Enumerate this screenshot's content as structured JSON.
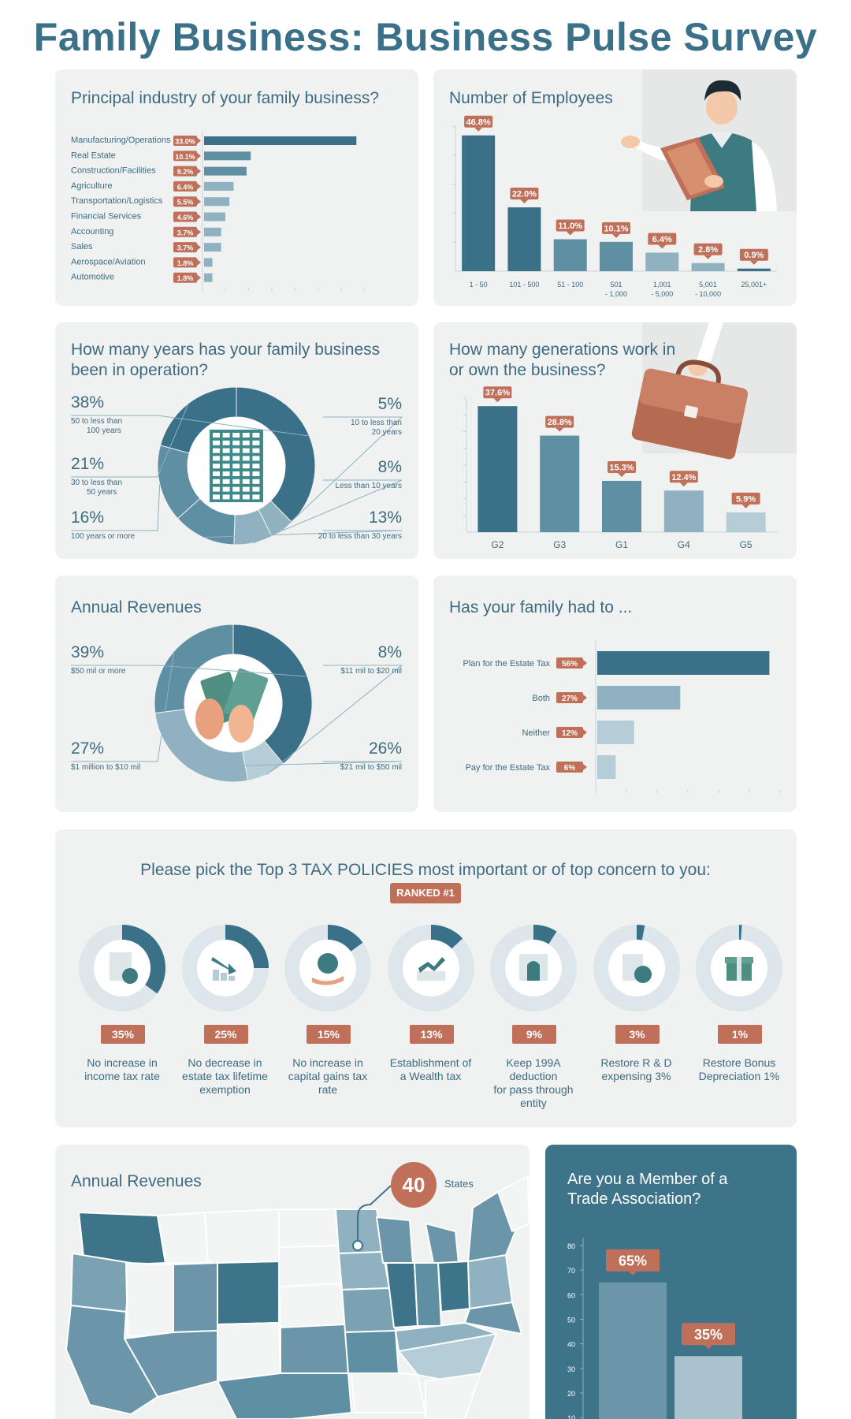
{
  "title": "Family Business: Business Pulse Survey",
  "colors": {
    "dark": "#3a7189",
    "mid": "#5e8fa3",
    "light": "#8fb1c0",
    "pale": "#b5cdd7",
    "accent": "#c07059",
    "card": "#f0f1f1"
  },
  "industry": {
    "title": "Principal industry of your family business?",
    "chart_data": {
      "type": "bar",
      "orientation": "horizontal",
      "categories": [
        "Manufacturing/Operations",
        "Real Estate",
        "Construction/Facilities",
        "Agriculture",
        "Transportation/Logistics",
        "Financial Services",
        "Accounting",
        "Sales",
        "Aerospace/Aviation",
        "Automotive"
      ],
      "values": [
        33.0,
        10.1,
        9.2,
        6.4,
        5.5,
        4.6,
        3.7,
        3.7,
        1.8,
        1.8
      ],
      "labels": [
        "33.0%",
        "10.1%",
        "9.2%",
        "6.4%",
        "5.5%",
        "4.6%",
        "3.7%",
        "3.7%",
        "1.8%",
        "1.8%"
      ],
      "xlim": [
        0,
        35
      ]
    }
  },
  "employees": {
    "title": "Number of Employees",
    "chart_data": {
      "type": "bar",
      "categories": [
        [
          "1 - 50"
        ],
        [
          "101 - 500"
        ],
        [
          "51 - 100"
        ],
        [
          "501",
          "- 1,000"
        ],
        [
          "1,001",
          "- 5,000"
        ],
        [
          "5,001",
          "- 10,000"
        ],
        [
          "25,001+"
        ]
      ],
      "values": [
        46.8,
        22.0,
        11.0,
        10.1,
        6.4,
        2.8,
        0.9
      ],
      "labels": [
        "46.8%",
        "22.0%",
        "11.0%",
        "10.1%",
        "6.4%",
        "2.8%",
        "0.9%"
      ],
      "ylim": [
        0,
        50
      ]
    }
  },
  "years": {
    "title": [
      "How many years has your family business",
      "been in operation?"
    ],
    "chart_data": {
      "type": "pie",
      "donut": true,
      "slices": [
        {
          "pct": "38%",
          "value": 38,
          "label": [
            "50 to less than",
            "100 years"
          ]
        },
        {
          "pct": "5%",
          "value": 5,
          "label": [
            "10 to less than",
            "20 years"
          ]
        },
        {
          "pct": "8%",
          "value": 8,
          "label": [
            "Less than 10 years"
          ]
        },
        {
          "pct": "13%",
          "value": 13,
          "label": [
            "20 to less than 30 years"
          ]
        },
        {
          "pct": "16%",
          "value": 16,
          "label": [
            "100 years or more"
          ]
        },
        {
          "pct": "21%",
          "value": 21,
          "label": [
            "30 to less than",
            "50 years"
          ]
        }
      ]
    }
  },
  "generations": {
    "title": [
      "How many generations work in",
      "or own the business?"
    ],
    "chart_data": {
      "type": "bar",
      "categories": [
        "G2",
        "G3",
        "G1",
        "G4",
        "G5"
      ],
      "values": [
        37.6,
        28.8,
        15.3,
        12.4,
        5.9
      ],
      "labels": [
        "37.6%",
        "28.8%",
        "15.3%",
        "12.4%",
        "5.9%"
      ],
      "ylim": [
        0,
        40
      ]
    }
  },
  "revenues": {
    "title": "Annual Revenues",
    "chart_data": {
      "type": "pie",
      "donut": true,
      "slices": [
        {
          "pct": "39%",
          "value": 39,
          "label": [
            "$50 mil or more"
          ]
        },
        {
          "pct": "8%",
          "value": 8,
          "label": [
            "$11 mil to $20 mil"
          ]
        },
        {
          "pct": "26%",
          "value": 26,
          "label": [
            "$21 mil to $50 mil"
          ]
        },
        {
          "pct": "27%",
          "value": 27,
          "label": [
            "$1 million to $10 mil"
          ]
        }
      ]
    }
  },
  "estate": {
    "title": "Has your family had to ...",
    "chart_data": {
      "type": "bar",
      "orientation": "horizontal",
      "categories": [
        "Plan for the Estate Tax",
        "Both",
        "Neither",
        "Pay for the Estate Tax"
      ],
      "values": [
        56,
        27,
        12,
        6
      ],
      "labels": [
        "56%",
        "27%",
        "12%",
        "6%"
      ],
      "xlim": [
        0,
        60
      ]
    }
  },
  "tax": {
    "heading": "Please pick the Top 3 TAX POLICIES most important or of top concern to you:",
    "badge": "RANKED #1",
    "chart_data": {
      "type": "pie",
      "items": [
        {
          "value": 35,
          "pct": "35%",
          "label": [
            "No increase in",
            "income tax rate"
          ],
          "icon": "tax-document-icon"
        },
        {
          "value": 25,
          "pct": "25%",
          "label": [
            "No decrease in",
            "estate tax lifetime",
            "exemption"
          ],
          "icon": "declining-chart-icon"
        },
        {
          "value": 15,
          "pct": "15%",
          "label": [
            "No increase in",
            "capital gains tax",
            "rate"
          ],
          "icon": "money-bag-icon"
        },
        {
          "value": 13,
          "pct": "13%",
          "label": [
            "Establishment of",
            "a Wealth tax"
          ],
          "icon": "growth-chart-icon"
        },
        {
          "value": 9,
          "pct": "9%",
          "label": [
            "Keep 199A deduction",
            "for pass through",
            "entity"
          ],
          "icon": "headstone-document-icon"
        },
        {
          "value": 3,
          "pct": "3%",
          "label": [
            "Restore R & D",
            "expensing 3%"
          ],
          "icon": "dollar-exchange-icon"
        },
        {
          "value": 1,
          "pct": "1%",
          "label": [
            "Restore Bonus",
            "Depreciation 1%"
          ],
          "icon": "gift-icon"
        }
      ]
    }
  },
  "map": {
    "title": "Annual Revenues",
    "count": "40",
    "count_label": "States"
  },
  "member": {
    "title": [
      "Are you a Member of a",
      "Trade Association?"
    ],
    "chart_data": {
      "type": "bar",
      "values": [
        65,
        35
      ],
      "labels": [
        "65%",
        "35%"
      ],
      "yticks": [
        10,
        20,
        30,
        40,
        50,
        60,
        70,
        80
      ],
      "ylim": [
        0,
        80
      ]
    }
  }
}
